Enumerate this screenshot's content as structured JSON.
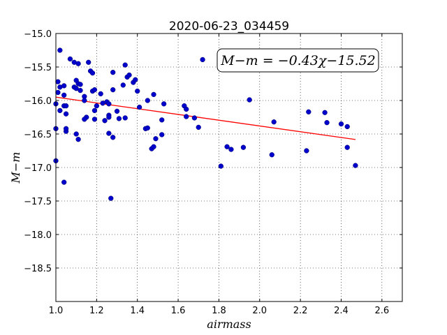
{
  "chart_data": {
    "type": "scatter",
    "title": "2020-06-23_034459",
    "xlabel": "airmass",
    "ylabel": "M−m",
    "xlim": [
      1.0,
      2.7
    ],
    "ylim": [
      -19.0,
      -15.0
    ],
    "y_inverted": true,
    "grid": true,
    "x_ticks": [
      1.0,
      1.2,
      1.4,
      1.6,
      1.8,
      2.0,
      2.2,
      2.4,
      2.6
    ],
    "x_tick_labels": [
      "1.0",
      "1.2",
      "1.4",
      "1.6",
      "1.8",
      "2.0",
      "2.2",
      "2.4",
      "2.6"
    ],
    "y_ticks": [
      -15.0,
      -15.5,
      -16.0,
      -16.5,
      -17.0,
      -17.5,
      -18.0,
      -18.5
    ],
    "y_tick_labels": [
      "−15.0",
      "−15.5",
      "−16.0",
      "−16.5",
      "−17.0",
      "−17.5",
      "−18.0",
      "−18.5"
    ],
    "annotation": "M−m = −0.43χ−15.52",
    "fit": {
      "slope": -0.43,
      "intercept": -15.52,
      "x_range": [
        1.0,
        2.47
      ],
      "color": "#ff0000"
    },
    "marker_color": "#0000cc",
    "points": [
      [
        1.0,
        -16.9
      ],
      [
        1.0,
        -16.42
      ],
      [
        1.0,
        -16.05
      ],
      [
        1.01,
        -15.72
      ],
      [
        1.01,
        -15.88
      ],
      [
        1.02,
        -15.25
      ],
      [
        1.02,
        -15.8
      ],
      [
        1.02,
        -16.15
      ],
      [
        1.04,
        -15.78
      ],
      [
        1.04,
        -16.08
      ],
      [
        1.04,
        -15.92
      ],
      [
        1.05,
        -16.2
      ],
      [
        1.05,
        -16.46
      ],
      [
        1.05,
        -16.42
      ],
      [
        1.05,
        -16.08
      ],
      [
        1.04,
        -17.22
      ],
      [
        1.07,
        -15.38
      ],
      [
        1.09,
        -15.43
      ],
      [
        1.09,
        -15.8
      ],
      [
        1.1,
        -15.82
      ],
      [
        1.1,
        -15.7
      ],
      [
        1.11,
        -15.75
      ],
      [
        1.11,
        -15.45
      ],
      [
        1.11,
        -16.58
      ],
      [
        1.1,
        -16.5
      ],
      [
        1.12,
        -15.76
      ],
      [
        1.12,
        -15.85
      ],
      [
        1.14,
        -15.94
      ],
      [
        1.14,
        -16.0
      ],
      [
        1.15,
        -16.25
      ],
      [
        1.14,
        -16.28
      ],
      [
        1.16,
        -15.43
      ],
      [
        1.17,
        -15.56
      ],
      [
        1.18,
        -15.59
      ],
      [
        1.18,
        -15.86
      ],
      [
        1.19,
        -15.84
      ],
      [
        1.19,
        -16.15
      ],
      [
        1.2,
        -16.08
      ],
      [
        1.19,
        -16.28
      ],
      [
        1.22,
        -15.9
      ],
      [
        1.23,
        -16.04
      ],
      [
        1.24,
        -16.3
      ],
      [
        1.25,
        -16.02
      ],
      [
        1.26,
        -16.05
      ],
      [
        1.26,
        -16.22
      ],
      [
        1.26,
        -16.25
      ],
      [
        1.26,
        -16.49
      ],
      [
        1.28,
        -16.55
      ],
      [
        1.27,
        -17.46
      ],
      [
        1.28,
        -15.58
      ],
      [
        1.28,
        -15.84
      ],
      [
        1.3,
        -16.16
      ],
      [
        1.31,
        -16.27
      ],
      [
        1.33,
        -15.77
      ],
      [
        1.34,
        -15.47
      ],
      [
        1.35,
        -15.65
      ],
      [
        1.36,
        -15.62
      ],
      [
        1.34,
        -16.26
      ],
      [
        1.38,
        -15.73
      ],
      [
        1.39,
        -15.69
      ],
      [
        1.4,
        -15.86
      ],
      [
        1.41,
        -16.1
      ],
      [
        1.44,
        -16.42
      ],
      [
        1.45,
        -16.0
      ],
      [
        1.45,
        -16.41
      ],
      [
        1.47,
        -16.72
      ],
      [
        1.48,
        -16.69
      ],
      [
        1.48,
        -15.91
      ],
      [
        1.49,
        -16.57
      ],
      [
        1.52,
        -16.29
      ],
      [
        1.52,
        -16.51
      ],
      [
        1.53,
        -16.05
      ],
      [
        1.63,
        -16.08
      ],
      [
        1.64,
        -16.13
      ],
      [
        1.64,
        -16.24
      ],
      [
        1.68,
        -16.26
      ],
      [
        1.7,
        -16.4
      ],
      [
        1.72,
        -15.39
      ],
      [
        1.81,
        -16.98
      ],
      [
        1.84,
        -16.69
      ],
      [
        1.86,
        -16.73
      ],
      [
        1.92,
        -16.7
      ],
      [
        1.95,
        -15.99
      ],
      [
        2.06,
        -16.81
      ],
      [
        2.07,
        -16.32
      ],
      [
        2.23,
        -16.75
      ],
      [
        2.24,
        -16.17
      ],
      [
        2.32,
        -16.18
      ],
      [
        2.33,
        -16.33
      ],
      [
        2.4,
        -16.35
      ],
      [
        2.43,
        -16.7
      ],
      [
        2.43,
        -16.39
      ],
      [
        2.47,
        -16.97
      ]
    ]
  }
}
